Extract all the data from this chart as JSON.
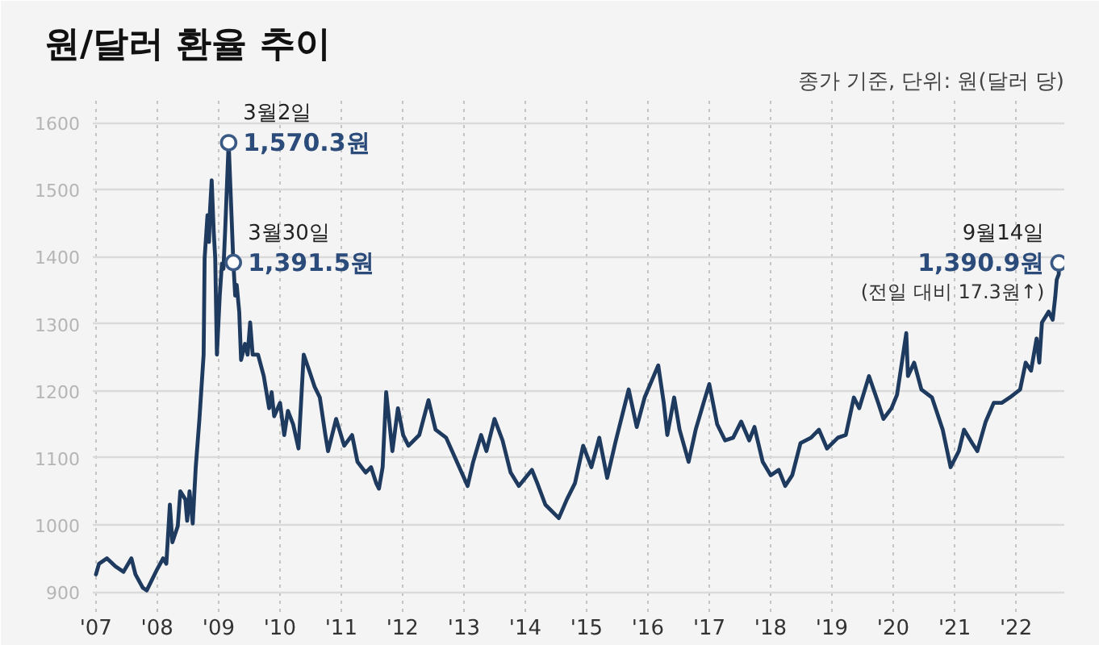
{
  "chart_data": {
    "type": "line",
    "title": "원/달러 환율 추이",
    "subtitle": "종가 기준, 단위: 원(달러 당)",
    "xlim": [
      "2006-12-14",
      "2022-10-16"
    ],
    "ylim": [
      870,
      1640
    ],
    "xticks": [
      {
        "value": "2007",
        "label": "'07"
      },
      {
        "value": "2008",
        "label": "'08"
      },
      {
        "value": "2009",
        "label": "'09"
      },
      {
        "value": "2010",
        "label": "'10"
      },
      {
        "value": "2011",
        "label": "'11"
      },
      {
        "value": "2012",
        "label": "'12"
      },
      {
        "value": "2013",
        "label": "'13"
      },
      {
        "value": "2014",
        "label": "'14"
      },
      {
        "value": "2015",
        "label": "'15"
      },
      {
        "value": "2016",
        "label": "'16"
      },
      {
        "value": "2017",
        "label": "'17"
      },
      {
        "value": "2018",
        "label": "'18"
      },
      {
        "value": "2019",
        "label": "'19"
      },
      {
        "value": "2020",
        "label": "'20"
      },
      {
        "value": "2021",
        "label": "'21"
      },
      {
        "value": "2022",
        "label": "'22"
      }
    ],
    "yticks": [
      900,
      1000,
      1100,
      1200,
      1300,
      1400,
      1500,
      1600
    ],
    "grid": true,
    "series": [
      {
        "color": "#1e3a5f",
        "x": [
          "2007-01-02",
          "2007-01-20",
          "2007-03-08",
          "2007-04-28",
          "2007-06-15",
          "2007-08-01",
          "2007-08-25",
          "2007-10-08",
          "2007-10-31",
          "2008-01-02",
          "2008-02-06",
          "2008-02-25",
          "2008-03-17",
          "2008-04-01",
          "2008-05-03",
          "2008-05-18",
          "2008-06-17",
          "2008-06-28",
          "2008-07-12",
          "2008-07-31",
          "2008-08-18",
          "2008-09-09",
          "2008-10-04",
          "2008-10-10",
          "2008-10-27",
          "2008-11-05",
          "2008-11-11",
          "2008-11-21",
          "2008-12-03",
          "2008-12-12",
          "2008-12-22",
          "2009-01-08",
          "2009-01-21",
          "2009-01-30",
          "2009-02-09",
          "2009-03-02",
          "2009-03-30",
          "2009-04-10",
          "2009-04-19",
          "2009-05-04",
          "2009-05-15",
          "2009-06-07",
          "2009-06-23",
          "2009-07-08",
          "2009-07-23",
          "2009-08-24",
          "2009-09-27",
          "2009-10-29",
          "2009-11-13",
          "2009-11-28",
          "2010-01-02",
          "2010-01-27",
          "2010-02-18",
          "2010-03-21",
          "2010-04-22",
          "2010-05-23",
          "2010-06-25",
          "2010-07-27",
          "2010-08-27",
          "2010-09-29",
          "2010-10-15",
          "2010-12-02",
          "2011-01-19",
          "2011-03-07",
          "2011-04-08",
          "2011-05-27",
          "2011-06-28",
          "2011-07-29",
          "2011-08-14",
          "2011-09-05",
          "2011-09-26",
          "2011-11-02",
          "2011-12-05",
          "2012-01-05",
          "2012-02-06",
          "2012-04-10",
          "2012-06-04",
          "2012-07-16",
          "2012-09-17",
          "2012-11-20",
          "2013-01-23",
          "2013-02-25",
          "2013-04-13",
          "2013-05-15",
          "2013-07-02",
          "2013-08-19",
          "2013-10-06",
          "2013-11-24",
          "2014-02-10",
          "2014-03-14",
          "2014-05-01",
          "2014-07-20",
          "2014-09-06",
          "2014-10-24",
          "2014-12-12",
          "2015-01-30",
          "2015-03-18",
          "2015-05-04",
          "2015-06-21",
          "2015-09-09",
          "2015-10-27",
          "2015-12-13",
          "2016-03-03",
          "2016-04-05",
          "2016-04-26",
          "2016-06-06",
          "2016-07-08",
          "2016-08-31",
          "2016-10-12",
          "2016-11-28",
          "2017-01-01",
          "2017-02-17",
          "2017-04-05",
          "2017-05-23",
          "2017-07-10",
          "2017-08-27",
          "2017-09-27",
          "2017-11-15",
          "2018-01-02",
          "2018-02-19",
          "2018-03-29",
          "2018-05-10",
          "2018-06-28",
          "2018-08-30",
          "2018-10-16",
          "2018-12-03",
          "2019-02-06",
          "2019-03-25",
          "2019-05-12",
          "2019-06-13",
          "2019-08-10",
          "2019-10-04",
          "2019-11-04",
          "2019-12-22",
          "2020-01-24",
          "2020-03-19",
          "2020-03-29",
          "2020-05-05",
          "2020-06-17",
          "2020-08-19",
          "2020-10-22",
          "2020-12-08",
          "2021-01-26",
          "2021-02-26",
          "2021-04-15",
          "2021-05-16",
          "2021-07-05",
          "2021-08-22",
          "2021-10-08",
          "2021-11-25",
          "2022-01-26",
          "2022-02-28",
          "2022-04-01",
          "2022-05-04",
          "2022-05-20",
          "2022-06-05",
          "2022-07-15",
          "2022-08-08",
          "2022-08-23",
          "2022-09-01",
          "2022-09-13",
          "2022-09-14"
        ],
        "values": [
          926,
          942,
          950,
          938,
          930,
          950,
          926,
          906,
          902,
          934,
          950,
          942,
          1030,
          974,
          998,
          1050,
          1038,
          1006,
          1050,
          1002,
          1086,
          1158,
          1254,
          1398,
          1462,
          1422,
          1470,
          1514,
          1438,
          1398,
          1254,
          1342,
          1390,
          1382,
          1438,
          1570.3,
          1391.5,
          1342,
          1358,
          1318,
          1246,
          1270,
          1254,
          1302,
          1254,
          1254,
          1222,
          1174,
          1198,
          1162,
          1182,
          1134,
          1170,
          1150,
          1114,
          1254,
          1230,
          1206,
          1190,
          1134,
          1110,
          1158,
          1118,
          1134,
          1094,
          1078,
          1086,
          1062,
          1054,
          1086,
          1198,
          1110,
          1174,
          1134,
          1118,
          1134,
          1186,
          1142,
          1130,
          1094,
          1058,
          1094,
          1134,
          1110,
          1158,
          1126,
          1078,
          1058,
          1082,
          1062,
          1030,
          1010,
          1038,
          1062,
          1118,
          1086,
          1130,
          1070,
          1122,
          1202,
          1146,
          1190,
          1238,
          1182,
          1134,
          1190,
          1142,
          1094,
          1142,
          1182,
          1210,
          1150,
          1126,
          1130,
          1154,
          1126,
          1146,
          1094,
          1074,
          1082,
          1058,
          1074,
          1122,
          1130,
          1142,
          1114,
          1130,
          1134,
          1190,
          1174,
          1222,
          1182,
          1158,
          1174,
          1194,
          1286,
          1222,
          1242,
          1202,
          1190,
          1142,
          1086,
          1110,
          1142,
          1122,
          1110,
          1154,
          1182,
          1182,
          1190,
          1202,
          1242,
          1230,
          1278,
          1242,
          1302,
          1318,
          1306,
          1340,
          1366,
          1374,
          1390.9
        ]
      }
    ],
    "annotations": [
      {
        "text": "3월2일\n1,570.3원",
        "x": "2009-03-02",
        "y": 1570.3
      },
      {
        "text": "3월30일\n1,391.5원",
        "x": "2009-03-30",
        "y": 1391.5
      },
      {
        "text": "9월14일\n1,390.9원\n(전일 대비 17.3원↑)",
        "x": "2022-09-14",
        "y": 1390.9
      }
    ]
  }
}
